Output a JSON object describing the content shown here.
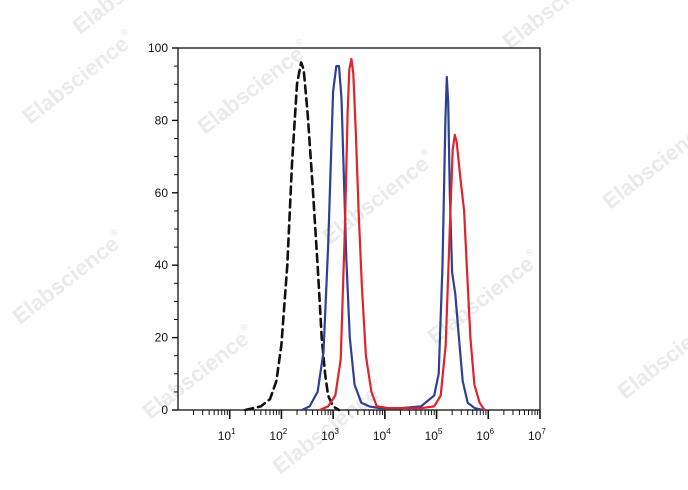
{
  "watermark": {
    "text": "Elabscience",
    "symbol": "®"
  },
  "chart_data": {
    "type": "line",
    "title": "",
    "xlabel": "",
    "ylabel": "",
    "x_scale": "log",
    "xlim": [
      1,
      10000000
    ],
    "ylim": [
      0,
      100
    ],
    "grid": false,
    "legend": "none",
    "x_ticks": [
      {
        "base": "10",
        "exp": "1",
        "value": 10
      },
      {
        "base": "10",
        "exp": "2",
        "value": 100
      },
      {
        "base": "10",
        "exp": "3",
        "value": 1000
      },
      {
        "base": "10",
        "exp": "4",
        "value": 10000
      },
      {
        "base": "10",
        "exp": "5",
        "value": 100000
      },
      {
        "base": "10",
        "exp": "6",
        "value": 1000000
      },
      {
        "base": "10",
        "exp": "7",
        "value": 10000000
      }
    ],
    "y_ticks": [
      {
        "label": "0",
        "value": 0
      },
      {
        "label": "20",
        "value": 20
      },
      {
        "label": "40",
        "value": 40
      },
      {
        "label": "60",
        "value": 60
      },
      {
        "label": "80",
        "value": 80
      },
      {
        "label": "100",
        "value": 100
      }
    ],
    "series": [
      {
        "color": "#111111",
        "style": "dashed",
        "points": [
          [
            20,
            0
          ],
          [
            40,
            1
          ],
          [
            60,
            3
          ],
          [
            80,
            8
          ],
          [
            100,
            18
          ],
          [
            130,
            40
          ],
          [
            160,
            68
          ],
          [
            200,
            90
          ],
          [
            240,
            96
          ],
          [
            270,
            94
          ],
          [
            320,
            82
          ],
          [
            400,
            62
          ],
          [
            500,
            40
          ],
          [
            600,
            20
          ],
          [
            700,
            10
          ],
          [
            800,
            4
          ],
          [
            1000,
            1
          ],
          [
            1300,
            0
          ]
        ]
      },
      {
        "color": "#2f3f96",
        "style": "solid",
        "points": [
          [
            250,
            0
          ],
          [
            350,
            1
          ],
          [
            500,
            5
          ],
          [
            650,
            16
          ],
          [
            800,
            45
          ],
          [
            900,
            68
          ],
          [
            1000,
            88
          ],
          [
            1150,
            95
          ],
          [
            1300,
            95
          ],
          [
            1450,
            86
          ],
          [
            1600,
            66
          ],
          [
            1800,
            42
          ],
          [
            2100,
            20
          ],
          [
            2600,
            7
          ],
          [
            3500,
            2
          ],
          [
            5000,
            1
          ],
          [
            8000,
            0.5
          ],
          [
            20000,
            0.5
          ],
          [
            50000,
            1
          ],
          [
            90000,
            4
          ],
          [
            110000,
            10
          ],
          [
            130000,
            40
          ],
          [
            148000,
            80
          ],
          [
            158000,
            92
          ],
          [
            168000,
            85
          ],
          [
            180000,
            60
          ],
          [
            200000,
            38
          ],
          [
            230000,
            32
          ],
          [
            270000,
            20
          ],
          [
            320000,
            8
          ],
          [
            400000,
            2
          ],
          [
            550000,
            0.5
          ],
          [
            800000,
            0
          ]
        ]
      },
      {
        "color": "#e0242c",
        "style": "solid",
        "points": [
          [
            550,
            0
          ],
          [
            800,
            1
          ],
          [
            1100,
            4
          ],
          [
            1400,
            14
          ],
          [
            1700,
            52
          ],
          [
            1900,
            82
          ],
          [
            2050,
            94
          ],
          [
            2250,
            97
          ],
          [
            2450,
            93
          ],
          [
            2750,
            76
          ],
          [
            3100,
            55
          ],
          [
            3600,
            34
          ],
          [
            4300,
            15
          ],
          [
            5500,
            5
          ],
          [
            7000,
            1
          ],
          [
            12000,
            0.5
          ],
          [
            50000,
            0.5
          ],
          [
            90000,
            1
          ],
          [
            120000,
            4
          ],
          [
            150000,
            18
          ],
          [
            180000,
            50
          ],
          [
            205000,
            72
          ],
          [
            225000,
            76
          ],
          [
            245000,
            74
          ],
          [
            270000,
            68
          ],
          [
            300000,
            62
          ],
          [
            340000,
            55
          ],
          [
            390000,
            38
          ],
          [
            450000,
            20
          ],
          [
            540000,
            7
          ],
          [
            680000,
            2
          ],
          [
            850000,
            0
          ]
        ]
      }
    ]
  }
}
